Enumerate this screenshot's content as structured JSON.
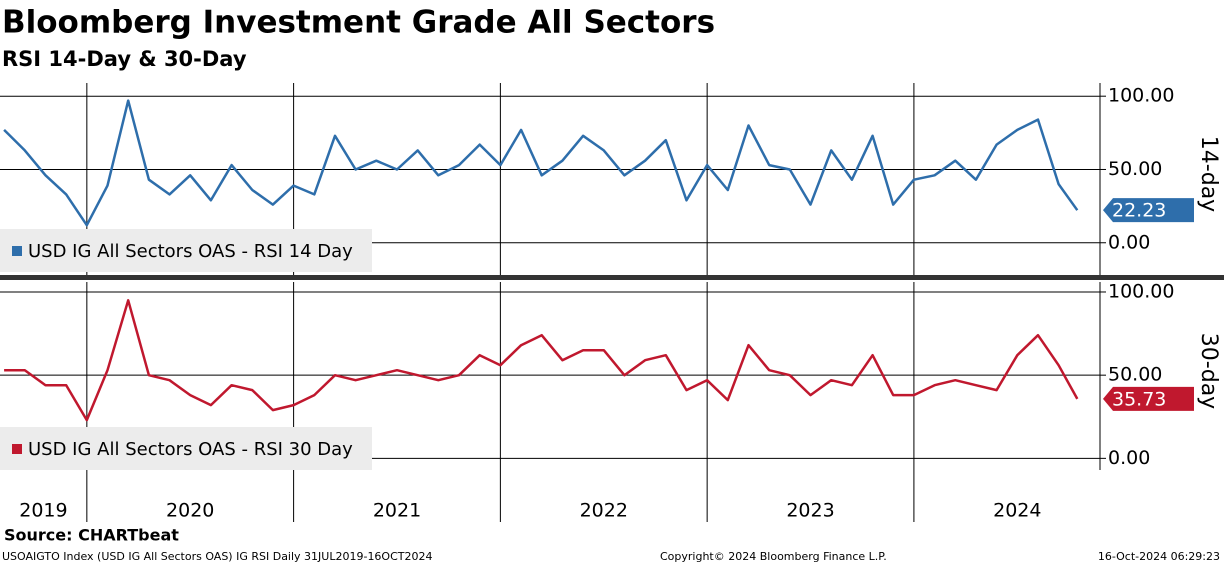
{
  "header": {
    "title": "Bloomberg Investment Grade All Sectors",
    "subtitle": "RSI 14-Day & 30-Day"
  },
  "chart_data": [
    {
      "type": "line",
      "x": [
        2019.6,
        2019.7,
        2019.8,
        2019.9,
        2020.0,
        2020.1,
        2020.2,
        2020.3,
        2020.4,
        2020.5,
        2020.6,
        2020.7,
        2020.8,
        2020.9,
        2021.0,
        2021.1,
        2021.2,
        2021.3,
        2021.4,
        2021.5,
        2021.6,
        2021.7,
        2021.8,
        2021.9,
        2022.0,
        2022.1,
        2022.2,
        2022.3,
        2022.4,
        2022.5,
        2022.6,
        2022.7,
        2022.8,
        2022.9,
        2023.0,
        2023.1,
        2023.2,
        2023.3,
        2023.4,
        2023.5,
        2023.6,
        2023.7,
        2023.8,
        2023.9,
        2024.0,
        2024.1,
        2024.2,
        2024.3,
        2024.4,
        2024.5,
        2024.6,
        2024.7,
        2024.79
      ],
      "series": [
        {
          "name": "USD IG All Sectors OAS - RSI 14 Day",
          "color": "#2e6eab",
          "values": [
            77,
            63,
            46,
            33,
            12,
            39,
            97,
            43,
            33,
            46,
            29,
            53,
            36,
            26,
            39,
            33,
            73,
            50,
            56,
            50,
            63,
            46,
            53,
            67,
            53,
            77,
            46,
            56,
            73,
            63,
            46,
            56,
            70,
            29,
            53,
            36,
            80,
            53,
            50,
            26,
            63,
            43,
            73,
            26,
            43,
            46,
            56,
            43,
            67,
            77,
            84,
            40,
            22.23
          ]
        }
      ],
      "xlim": [
        2019.58,
        2024.9
      ],
      "xticks": [
        2020,
        2021,
        2022,
        2023,
        2024
      ],
      "ylim": [
        -22,
        109
      ],
      "yticks": [
        {
          "value": 0,
          "label": "0.00"
        },
        {
          "value": 50,
          "label": "50.00"
        },
        {
          "value": 100,
          "label": "100.00"
        }
      ],
      "y_axis_title": "14-day",
      "grid": true
    },
    {
      "type": "line",
      "x": [
        2019.6,
        2019.7,
        2019.8,
        2019.9,
        2020.0,
        2020.1,
        2020.2,
        2020.3,
        2020.4,
        2020.5,
        2020.6,
        2020.7,
        2020.8,
        2020.9,
        2021.0,
        2021.1,
        2021.2,
        2021.3,
        2021.4,
        2021.5,
        2021.6,
        2021.7,
        2021.8,
        2021.9,
        2022.0,
        2022.1,
        2022.2,
        2022.3,
        2022.4,
        2022.5,
        2022.6,
        2022.7,
        2022.8,
        2022.9,
        2023.0,
        2023.1,
        2023.2,
        2023.3,
        2023.4,
        2023.5,
        2023.6,
        2023.7,
        2023.8,
        2023.9,
        2024.0,
        2024.1,
        2024.2,
        2024.3,
        2024.4,
        2024.5,
        2024.6,
        2024.7,
        2024.79
      ],
      "series": [
        {
          "name": "USD IG All Sectors OAS - RSI 30 Day",
          "color": "#c0182e",
          "values": [
            53,
            53,
            44,
            44,
            23,
            53,
            95,
            50,
            47,
            38,
            32,
            44,
            41,
            29,
            32,
            38,
            50,
            47,
            50,
            53,
            50,
            47,
            50,
            62,
            56,
            68,
            74,
            59,
            65,
            65,
            50,
            59,
            62,
            41,
            47,
            35,
            68,
            53,
            50,
            38,
            47,
            44,
            62,
            38,
            38,
            44,
            47,
            44,
            41,
            62,
            74,
            56,
            35.73
          ]
        }
      ],
      "xlim": [
        2019.58,
        2024.9
      ],
      "xticks": [
        2020,
        2021,
        2022,
        2023,
        2024
      ],
      "ylim": [
        -7,
        106
      ],
      "yticks": [
        {
          "value": 0,
          "label": "0.00"
        },
        {
          "value": 50,
          "label": "50.00"
        },
        {
          "value": 100,
          "label": "100.00"
        }
      ],
      "y_axis_title": "30-day",
      "grid": true
    }
  ],
  "year_labels": [
    "2019",
    "2020",
    "2021",
    "2022",
    "2023",
    "2024"
  ],
  "footer": {
    "source": "Source: CHARTbeat",
    "description": "USOAIGTO Index (USD IG All Sectors OAS) IG RSI  Daily 31JUL2019-16OCT2024",
    "copyright": "Copyright© 2024 Bloomberg Finance L.P.",
    "timestamp": "16-Oct-2024 06:29:23"
  }
}
